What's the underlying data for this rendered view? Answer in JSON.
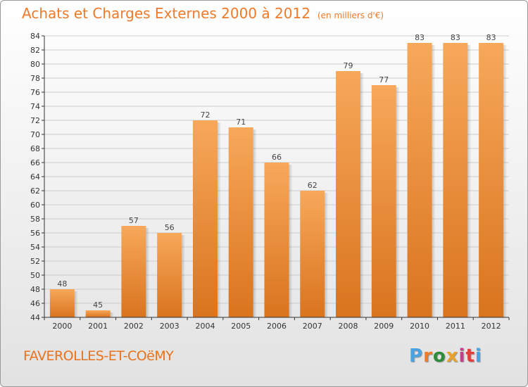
{
  "header": {
    "title": "Achats et Charges Externes 2000 à 2012",
    "unit": "(en milliers d'€)"
  },
  "footer": {
    "place": "FAVEROLLES-ET-COëMY",
    "logo_text": "Proxiti",
    "logo_colors": [
      "#4aa3df",
      "#ef7b2a",
      "#2e8b3a",
      "#e8a22a",
      "#c83c8c",
      "#e23c3c",
      "#4aa3df"
    ]
  },
  "chart_data": {
    "type": "bar",
    "categories": [
      "2000",
      "2001",
      "2002",
      "2003",
      "2004",
      "2005",
      "2006",
      "2007",
      "2008",
      "2009",
      "2010",
      "2011",
      "2012"
    ],
    "values": [
      48,
      45,
      57,
      56,
      72,
      71,
      66,
      62,
      79,
      77,
      83,
      83,
      83
    ],
    "ylim": [
      44,
      84
    ],
    "yticks": [
      44,
      46,
      48,
      50,
      52,
      54,
      56,
      58,
      60,
      62,
      64,
      66,
      68,
      70,
      72,
      74,
      76,
      78,
      80,
      82,
      84
    ],
    "grid": true,
    "colors": {
      "bar_top": "#f7a85a",
      "bar_bottom": "#d9741e",
      "label": "#444444",
      "axis": "#333333",
      "grid": "#cccccc"
    }
  }
}
